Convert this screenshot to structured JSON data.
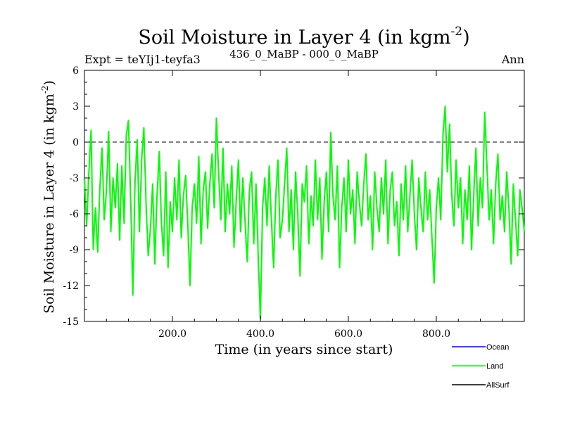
{
  "chart_data": {
    "type": "line",
    "title": "Soil Moisture in Layer 4 (in kgm",
    "title_sup": "-2",
    "title_close": ")",
    "subtitle_left": "Expt = teYIj1-teyfa3",
    "subtitle_center": "436_0_MaBP - 000_0_MaBP",
    "subtitle_right": "Ann",
    "xlabel": "Time (in years since start)",
    "ylabel": "Soil Moisture in Layer 4 (in kgm",
    "ylabel_sup": "-2",
    "ylabel_close": ")",
    "xlim": [
      0,
      1000
    ],
    "ylim": [
      -15,
      6
    ],
    "xticks": [
      200,
      400,
      600,
      800
    ],
    "xtick_labels": [
      "200.0",
      "400.0",
      "600.0",
      "800.0"
    ],
    "yticks": [
      6,
      3,
      0,
      -3,
      -6,
      -9,
      -12,
      -15
    ],
    "ytick_labels": [
      "6",
      "3",
      "0",
      "-3",
      "-6",
      "-9",
      "-12",
      "-15"
    ],
    "zero_line": 0,
    "legend": [
      {
        "name": "Ocean",
        "color": "#0000ff"
      },
      {
        "name": "Land",
        "color": "#00ff00"
      },
      {
        "name": "AllSurf",
        "color": "#000000"
      }
    ],
    "series": [
      {
        "name": "Land",
        "color": "#00ff00",
        "x": [
          0,
          5,
          10,
          15,
          20,
          25,
          30,
          35,
          40,
          45,
          50,
          55,
          60,
          65,
          70,
          75,
          80,
          85,
          90,
          95,
          100,
          105,
          110,
          115,
          120,
          125,
          130,
          135,
          140,
          145,
          150,
          155,
          160,
          165,
          170,
          175,
          180,
          185,
          190,
          195,
          200,
          205,
          210,
          215,
          220,
          225,
          230,
          235,
          240,
          245,
          250,
          255,
          260,
          265,
          270,
          275,
          280,
          285,
          290,
          295,
          300,
          305,
          310,
          315,
          320,
          325,
          330,
          335,
          340,
          345,
          350,
          355,
          360,
          365,
          370,
          375,
          380,
          385,
          390,
          395,
          400,
          405,
          410,
          415,
          420,
          425,
          430,
          435,
          440,
          445,
          450,
          455,
          460,
          465,
          470,
          475,
          480,
          485,
          490,
          495,
          500,
          505,
          510,
          515,
          520,
          525,
          530,
          535,
          540,
          545,
          550,
          555,
          560,
          565,
          570,
          575,
          580,
          585,
          590,
          595,
          600,
          605,
          610,
          615,
          620,
          625,
          630,
          635,
          640,
          645,
          650,
          655,
          660,
          665,
          670,
          675,
          680,
          685,
          690,
          695,
          700,
          705,
          710,
          715,
          720,
          725,
          730,
          735,
          740,
          745,
          750,
          755,
          760,
          765,
          770,
          775,
          780,
          785,
          790,
          795,
          800,
          805,
          810,
          815,
          820,
          825,
          830,
          835,
          840,
          845,
          850,
          855,
          860,
          865,
          870,
          875,
          880,
          885,
          890,
          895,
          900,
          905,
          910,
          915,
          920,
          925,
          930,
          935,
          940,
          945,
          950,
          955,
          960,
          965,
          970,
          975,
          980,
          985,
          990,
          995,
          1000
        ],
        "values": [
          -3.0,
          -7.0,
          -2.5,
          1.0,
          -9.0,
          -5.5,
          -9.2,
          -3.8,
          -0.5,
          -6.5,
          -4.0,
          0.9,
          -7.5,
          -3.0,
          -5.5,
          -1.8,
          -8.2,
          -2.0,
          -6.8,
          0.5,
          1.8,
          -4.5,
          -12.8,
          -3.2,
          0.2,
          -7.5,
          -1.5,
          1.2,
          -5.0,
          -9.5,
          -7.2,
          -3.5,
          -10.2,
          -4.5,
          -0.8,
          -6.8,
          -9.5,
          -2.5,
          -10.5,
          -5.0,
          -7.5,
          -3.0,
          -6.5,
          -1.5,
          -8.0,
          -4.5,
          -2.8,
          -7.0,
          -12.0,
          -5.5,
          -3.5,
          -6.8,
          -1.2,
          -8.5,
          -4.0,
          -2.5,
          -7.2,
          -3.5,
          -1.0,
          -5.5,
          2.0,
          -2.5,
          -6.5,
          -0.5,
          -7.5,
          -3.5,
          -6.0,
          -2.0,
          -8.8,
          -5.0,
          -1.5,
          -7.5,
          -3.0,
          -6.5,
          -10.0,
          -4.0,
          -2.5,
          -8.5,
          -3.5,
          -9.5,
          -14.8,
          -5.5,
          -3.0,
          -7.0,
          -2.0,
          -6.5,
          -10.5,
          -4.5,
          -1.5,
          -8.0,
          -6.5,
          -3.5,
          -0.5,
          -7.5,
          -4.0,
          -9.0,
          -2.5,
          -6.0,
          -11.2,
          -3.5,
          -5.0,
          -2.0,
          -8.5,
          -4.5,
          -7.0,
          -1.5,
          -6.5,
          -3.0,
          -9.8,
          -5.0,
          -2.5,
          -7.5,
          0.8,
          -4.5,
          -6.5,
          -2.0,
          -10.5,
          -5.5,
          -3.0,
          -7.5,
          -1.5,
          -6.0,
          -4.0,
          -8.5,
          -2.5,
          -5.0,
          -7.0,
          -3.5,
          -1.0,
          -6.5,
          -4.5,
          -9.0,
          -2.5,
          -5.5,
          -7.5,
          -3.0,
          -6.0,
          -1.5,
          -8.5,
          -4.0,
          -2.5,
          -7.0,
          -5.0,
          -9.5,
          -3.5,
          -6.5,
          -2.0,
          -7.5,
          -4.5,
          -1.5,
          -6.0,
          -9.0,
          -3.0,
          -5.5,
          -7.5,
          -2.5,
          -6.5,
          -4.0,
          -8.0,
          -11.8,
          -5.5,
          -3.0,
          -6.5,
          0.5,
          3.0,
          -2.5,
          1.5,
          -4.5,
          -7.0,
          -1.5,
          -5.5,
          -3.0,
          -8.5,
          -4.0,
          -6.5,
          -2.0,
          -9.0,
          -4.5,
          -0.5,
          -7.0,
          -3.0,
          -5.5,
          2.5,
          -2.0,
          -6.5,
          -4.0,
          -8.5,
          -3.5,
          -1.0,
          -6.5,
          -4.5,
          -7.5,
          -2.5,
          -5.5,
          -10.2,
          -3.5,
          -6.5,
          -9.5,
          -4.0,
          -5.5,
          -7.5
        ]
      }
    ]
  }
}
